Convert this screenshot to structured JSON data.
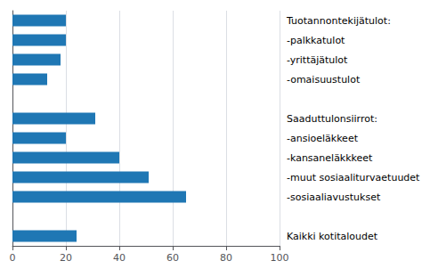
{
  "chart_data": {
    "type": "bar",
    "orientation": "horizontal",
    "categories": [
      "Tuotannontekijätulot:",
      "-palkkatulot",
      "-yrittäjätulot",
      "-omaisuustulot",
      null,
      "Saaduttulonsiirrot:",
      "-ansioeläkkeet",
      "-kansaneläkkkeet",
      "-muut sosiaaliturvaetuudet",
      "-sosiaaliavustukset",
      null,
      "Kaikki kotitaloudet"
    ],
    "values": [
      20,
      20,
      18,
      13,
      null,
      31,
      20,
      40,
      51,
      65,
      null,
      24
    ],
    "color": "#1F77B4",
    "xlim": [
      0,
      100
    ],
    "xticks": [
      0,
      20,
      40,
      60,
      80,
      100
    ],
    "grid": true
  }
}
